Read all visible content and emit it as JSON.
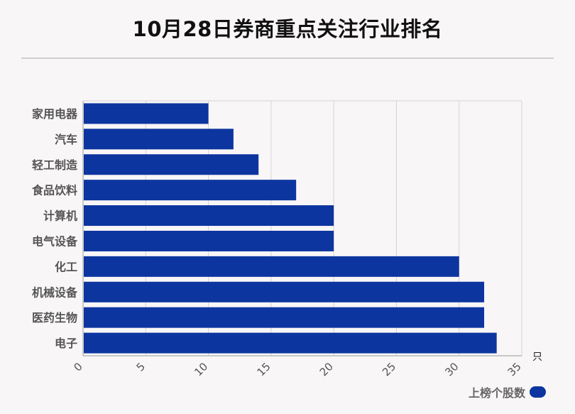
{
  "title": "10月28日券商重点关注行业排名",
  "colors": {
    "bar": "#0d35a0",
    "background": "#f9f6f7"
  },
  "chart_data": {
    "type": "bar",
    "orientation": "horizontal",
    "title": "10月28日券商重点关注行业排名",
    "categories": [
      "家用电器",
      "汽车",
      "轻工制造",
      "食品饮料",
      "计算机",
      "电气设备",
      "化工",
      "机械设备",
      "医药生物",
      "电子"
    ],
    "series": [
      {
        "name": "上榜个股数",
        "values": [
          10,
          12,
          14,
          17,
          20,
          20,
          30,
          32,
          32,
          33
        ]
      }
    ],
    "x_ticks": [
      "0",
      "5",
      "10",
      "15",
      "20",
      "25",
      "30",
      "35"
    ],
    "xlim": [
      0,
      35
    ],
    "x_unit": "只",
    "grid": true,
    "legend": "bottom-right"
  }
}
